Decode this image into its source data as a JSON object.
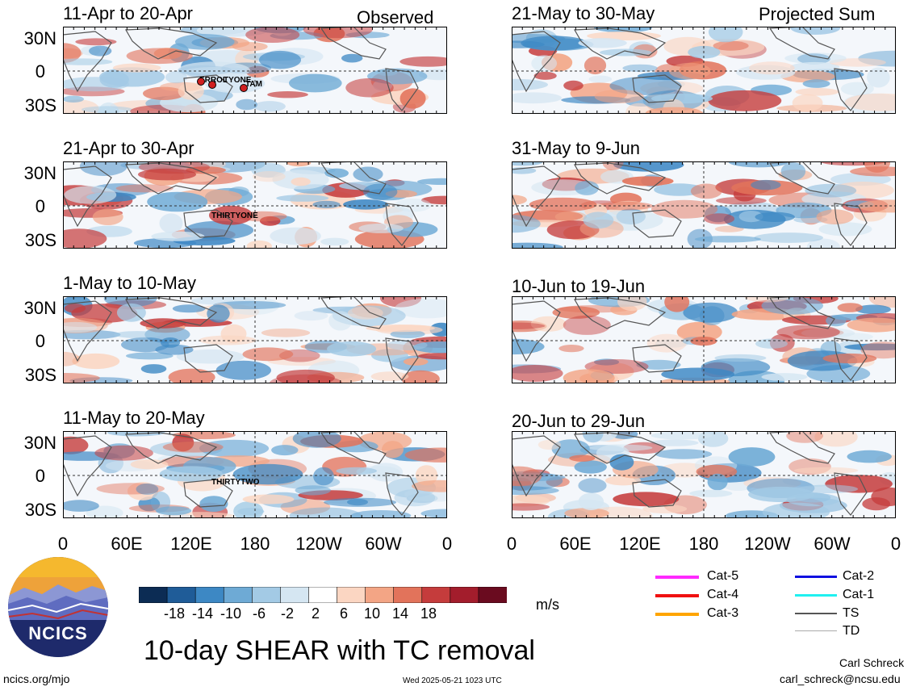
{
  "header": {
    "left_label": "Observed",
    "right_label": "Projected Sum"
  },
  "panels_left": [
    {
      "title": "11-Apr to 20-Apr",
      "storms": [
        "ERROL",
        "TYONE",
        "TAM"
      ]
    },
    {
      "title": "21-Apr to 30-Apr",
      "storms": [
        "THIRTYONE"
      ]
    },
    {
      "title": "1-May to 10-May",
      "storms": []
    },
    {
      "title": "11-May to 20-May",
      "storms": [
        "THIRTYTWO"
      ]
    }
  ],
  "panels_right": [
    {
      "title": "21-May to 30-May"
    },
    {
      "title": "31-May to 9-Jun"
    },
    {
      "title": "10-Jun to 19-Jun"
    },
    {
      "title": "20-Jun to 29-Jun"
    }
  ],
  "lat_labels": [
    "30N",
    "0",
    "30S"
  ],
  "lon_labels": [
    "0",
    "60E",
    "120E",
    "180",
    "120W",
    "60W",
    "0"
  ],
  "colorbar": {
    "labels": [
      "-18",
      "-14",
      "-10",
      "-6",
      "-2",
      "2",
      "6",
      "10",
      "14",
      "18"
    ],
    "colors": [
      "#0c2c54",
      "#1f5c98",
      "#3d88c4",
      "#6eaad5",
      "#a3cae5",
      "#d5e6f2",
      "#ffffff",
      "#fbd6c2",
      "#f3a585",
      "#e2735b",
      "#c53c3c",
      "#a31d2c",
      "#6a0b1f"
    ],
    "unit": "m/s"
  },
  "legend": [
    {
      "label": "Cat-5",
      "color": "#ff2aff"
    },
    {
      "label": "Cat-4",
      "color": "#f01010"
    },
    {
      "label": "Cat-3",
      "color": "#ffa500"
    },
    {
      "label": "Cat-2",
      "color": "#1010e0"
    },
    {
      "label": "Cat-1",
      "color": "#20f0f0"
    },
    {
      "label": "TS",
      "color": "#555555"
    },
    {
      "label": "TD",
      "color": "#aaaaaa"
    }
  ],
  "footer": {
    "logo_text": "NCICS",
    "main_title": "10-day SHEAR with TC removal",
    "url": "ncics.org/mjo",
    "timestamp": "Wed 2025-05-21 1023 UTC",
    "author": "Carl Schreck",
    "email": "carl_schreck@ncsu.edu"
  }
}
